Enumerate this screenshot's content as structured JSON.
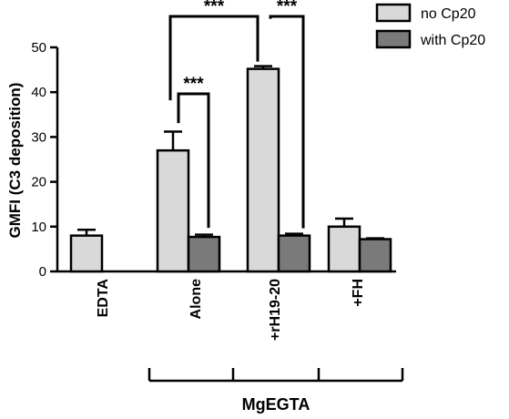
{
  "chart_data": {
    "type": "bar",
    "title": "",
    "ylabel": "GMFI (C3 deposition)",
    "xlabel": "",
    "ylim": [
      0,
      50
    ],
    "yticks": [
      0,
      10,
      20,
      30,
      40,
      50
    ],
    "categories": [
      "EDTA",
      "Alone",
      "+rH19-20",
      "+FH"
    ],
    "group_label": "MgEGTA",
    "series": [
      {
        "name": "no Cp20",
        "color": "#d9d9d9",
        "values": [
          8.0,
          27.0,
          45.2,
          10.0
        ],
        "errors": [
          1.3,
          4.2,
          0.6,
          1.8
        ]
      },
      {
        "name": "with Cp20",
        "color": "#7a7a7a",
        "values": [
          null,
          7.7,
          8.0,
          7.2
        ],
        "errors": [
          null,
          0.5,
          0.4,
          0.2
        ]
      }
    ],
    "significance": [
      {
        "label": "***"
      },
      {
        "label": "***"
      },
      {
        "label": "***"
      }
    ],
    "legend_position": "top-right",
    "grid": false
  }
}
